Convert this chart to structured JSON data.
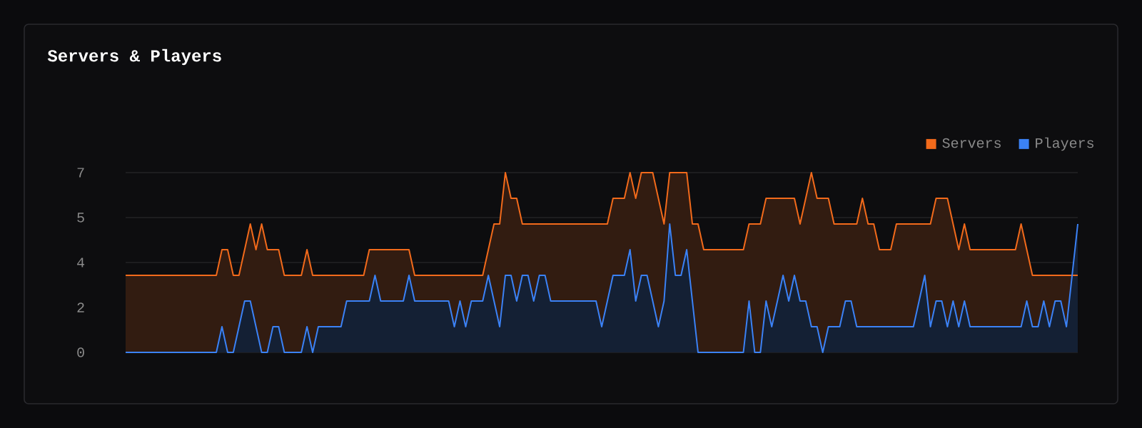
{
  "chart_data": {
    "type": "area",
    "title": "Servers & Players",
    "categories": [
      null,
      null,
      null,
      null,
      null,
      null,
      null,
      null,
      null,
      null,
      null,
      null,
      null,
      null,
      null,
      null,
      null,
      null,
      null,
      null,
      null,
      null,
      null,
      null,
      null,
      null,
      null,
      null,
      null,
      null,
      null,
      null,
      null,
      null,
      null,
      null,
      null,
      null,
      null,
      null,
      null,
      null,
      null,
      null,
      null,
      null,
      null,
      null,
      null,
      null,
      null,
      null,
      null,
      null,
      null,
      null,
      null,
      null,
      null,
      null,
      null,
      null,
      null,
      null,
      null,
      null,
      null,
      null,
      null,
      null,
      null,
      null,
      null,
      null,
      null,
      null,
      null,
      null,
      null,
      null,
      null,
      null,
      null,
      null,
      null,
      null,
      null,
      null,
      null,
      null,
      null,
      null,
      null,
      null,
      null,
      null,
      null,
      null,
      null,
      null,
      null,
      null,
      null,
      null,
      null,
      null,
      null,
      null,
      null,
      null,
      null,
      null,
      null,
      null,
      null,
      null,
      null,
      null,
      null,
      null,
      null,
      null,
      null,
      null,
      null,
      null,
      null,
      null,
      null,
      null,
      null,
      null,
      null,
      null,
      null,
      null,
      null,
      null,
      null,
      null,
      null,
      null,
      null,
      null,
      null,
      null,
      null,
      null,
      null,
      null,
      null,
      null,
      null,
      null,
      null,
      null,
      null,
      null,
      null,
      null,
      null,
      null,
      null,
      null,
      null,
      null,
      null,
      null,
      null
    ],
    "series": [
      {
        "name": "Servers",
        "color": "#f26a1b",
        "values": [
          3,
          3,
          3,
          3,
          3,
          3,
          3,
          3,
          3,
          3,
          3,
          3,
          3,
          3,
          3,
          3,
          3,
          4,
          4,
          3,
          3,
          4,
          5,
          4,
          5,
          4,
          4,
          4,
          3,
          3,
          3,
          3,
          4,
          3,
          3,
          3,
          3,
          3,
          3,
          3,
          3,
          3,
          3,
          4,
          4,
          4,
          4,
          4,
          4,
          4,
          4,
          3,
          3,
          3,
          3,
          3,
          3,
          3,
          3,
          3,
          3,
          3,
          3,
          3,
          4,
          5,
          5,
          7,
          6,
          6,
          5,
          5,
          5,
          5,
          5,
          5,
          5,
          5,
          5,
          5,
          5,
          5,
          5,
          5,
          5,
          5,
          6,
          6,
          6,
          7,
          6,
          7,
          7,
          7,
          6,
          5,
          7,
          7,
          7,
          7,
          5,
          5,
          4,
          4,
          4,
          4,
          4,
          4,
          4,
          4,
          5,
          5,
          5,
          6,
          6,
          6,
          6,
          6,
          6,
          5,
          6,
          7,
          6,
          6,
          6,
          5,
          5,
          5,
          5,
          5,
          6,
          5,
          5,
          4,
          4,
          4,
          5,
          5,
          5,
          5,
          5,
          5,
          5,
          6,
          6,
          6,
          5,
          4,
          5,
          4,
          4,
          4,
          4,
          4,
          4,
          4,
          4,
          4,
          5,
          4,
          3,
          3,
          3,
          3,
          3,
          3,
          3,
          3,
          3
        ]
      },
      {
        "name": "Players",
        "color": "#3b82f6",
        "values": [
          0,
          0,
          0,
          0,
          0,
          0,
          0,
          0,
          0,
          0,
          0,
          0,
          0,
          0,
          0,
          0,
          0,
          1,
          0,
          0,
          1,
          2,
          2,
          1,
          0,
          0,
          1,
          1,
          0,
          0,
          0,
          0,
          1,
          0,
          1,
          1,
          1,
          1,
          1,
          2,
          2,
          2,
          2,
          2,
          3,
          2,
          2,
          2,
          2,
          2,
          3,
          2,
          2,
          2,
          2,
          2,
          2,
          2,
          1,
          2,
          1,
          2,
          2,
          2,
          3,
          2,
          1,
          3,
          3,
          2,
          3,
          3,
          2,
          3,
          3,
          2,
          2,
          2,
          2,
          2,
          2,
          2,
          2,
          2,
          1,
          2,
          3,
          3,
          3,
          4,
          2,
          3,
          3,
          2,
          1,
          2,
          5,
          3,
          3,
          4,
          2,
          0,
          0,
          0,
          0,
          0,
          0,
          0,
          0,
          0,
          2,
          0,
          0,
          2,
          1,
          2,
          3,
          2,
          3,
          2,
          2,
          1,
          1,
          0,
          1,
          1,
          1,
          2,
          2,
          1,
          1,
          1,
          1,
          1,
          1,
          1,
          1,
          1,
          1,
          1,
          2,
          3,
          1,
          2,
          2,
          1,
          2,
          1,
          2,
          1,
          1,
          1,
          1,
          1,
          1,
          1,
          1,
          1,
          1,
          2,
          1,
          1,
          2,
          1,
          2,
          2,
          1,
          3,
          5
        ]
      }
    ],
    "ylim": [
      0,
      7
    ],
    "yticks": [
      0,
      {
        "value": 1.75,
        "label": "2"
      },
      {
        "value": 3.5,
        "label": "4"
      },
      {
        "value": 5.25,
        "label": "5"
      },
      7
    ],
    "grid": "y",
    "legend": "top right"
  }
}
